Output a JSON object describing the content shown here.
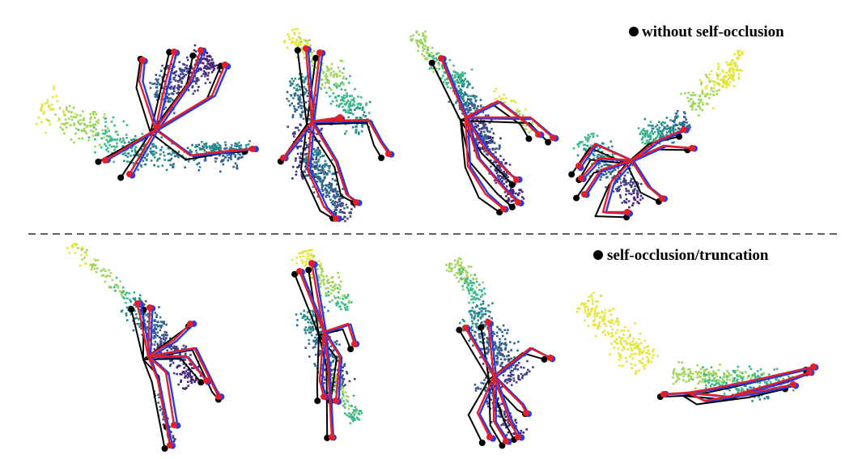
{
  "legend": {
    "top_label": "without self-occlusion",
    "bottom_label": "self-occlusion/truncation",
    "bullet_color": "#000000"
  },
  "colors": {
    "ground_truth": "#000000",
    "prediction_red": "#e0202a",
    "prediction_blue": "#2a3ae6",
    "divider": "#000000",
    "point_cloud_palette": [
      "#e4e63a",
      "#9fd65a",
      "#3db98a",
      "#2a8c8c",
      "#32638e",
      "#433e85",
      "#482576"
    ]
  },
  "rows": [
    {
      "name": "without self-occlusion",
      "hands": 4
    },
    {
      "name": "self-occlusion/truncation",
      "hands": 4
    }
  ]
}
